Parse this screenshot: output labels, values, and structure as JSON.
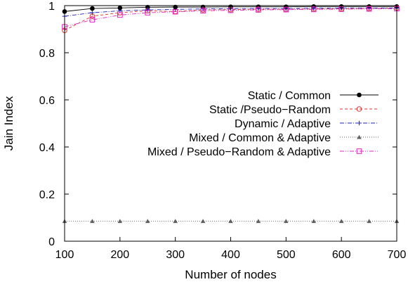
{
  "chart_data": {
    "type": "line",
    "title": "",
    "xlabel": "Number of nodes",
    "ylabel": "Jain Index",
    "xlim": [
      100,
      700
    ],
    "ylim": [
      0,
      1
    ],
    "xticks": [
      100,
      200,
      300,
      400,
      500,
      600,
      700
    ],
    "xtick_labels": [
      "100",
      "200",
      "300",
      "400",
      "500",
      "600",
      "700"
    ],
    "yticks": [
      0,
      0.2,
      0.4,
      0.6,
      0.8,
      1
    ],
    "ytick_labels": [
      "0",
      "0.2",
      "0.4",
      "0.6",
      "0.8",
      "1"
    ],
    "grid": false,
    "legend_position": "right",
    "x": [
      100,
      150,
      200,
      250,
      300,
      350,
      400,
      450,
      500,
      550,
      600,
      650,
      700
    ],
    "series": [
      {
        "name": "Static / Common",
        "color": "#000000",
        "marker": "filled-circle",
        "dash": "solid",
        "values": [
          0.975,
          0.988,
          0.99,
          0.993,
          0.994,
          0.994,
          0.995,
          0.995,
          0.995,
          0.996,
          0.996,
          0.996,
          0.996
        ]
      },
      {
        "name": "Static /Pseudo−Random",
        "color": "#e03030",
        "marker": "open-circle",
        "dash": "dashed",
        "values": [
          0.895,
          0.955,
          0.97,
          0.978,
          0.975,
          0.982,
          0.983,
          0.985,
          0.985,
          0.986,
          0.987,
          0.988,
          0.99
        ]
      },
      {
        "name": "Dynamic / Adaptive",
        "color": "#2020c0",
        "marker": "plus",
        "dash": "dashdot",
        "values": [
          0.955,
          0.97,
          0.978,
          0.982,
          0.984,
          0.986,
          0.987,
          0.988,
          0.988,
          0.989,
          0.99,
          0.99,
          0.99
        ]
      },
      {
        "name": "Mixed / Common & Adaptive",
        "color": "#606060",
        "marker": "filled-triangle",
        "dash": "dotted",
        "values": [
          0.085,
          0.085,
          0.085,
          0.085,
          0.085,
          0.085,
          0.085,
          0.085,
          0.085,
          0.085,
          0.085,
          0.085,
          0.085
        ]
      },
      {
        "name": "Mixed / Pseudo−Random & Adaptive",
        "color": "#e020c0",
        "marker": "open-square",
        "dash": "dashdotdot",
        "values": [
          0.91,
          0.94,
          0.96,
          0.97,
          0.974,
          0.978,
          0.98,
          0.982,
          0.983,
          0.984,
          0.985,
          0.986,
          0.987
        ]
      }
    ]
  }
}
